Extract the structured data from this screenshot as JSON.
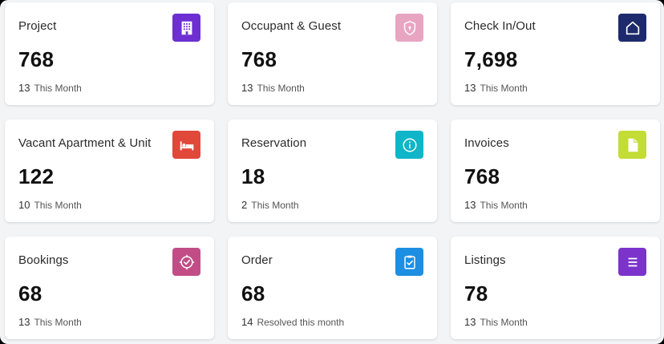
{
  "cards": [
    {
      "title": "Project",
      "value": "768",
      "count": "13",
      "period": "This Month",
      "icon": "building-icon",
      "color": "#6d2fd1"
    },
    {
      "title": "Occupant & Guest",
      "value": "768",
      "count": "13",
      "period": "This Month",
      "icon": "shield-icon",
      "color": "#e8a5c2"
    },
    {
      "title": "Check In/Out",
      "value": "7,698",
      "count": "13",
      "period": "This Month",
      "icon": "home-icon",
      "color": "#1e2a6b"
    },
    {
      "title": "Vacant Apartment & Unit",
      "value": "122",
      "count": "10",
      "period": "This Month",
      "icon": "bed-icon",
      "color": "#e0483a"
    },
    {
      "title": "Reservation",
      "value": "18",
      "count": "2",
      "period": "This Month",
      "icon": "info-icon",
      "color": "#0fb5c8"
    },
    {
      "title": "Invoices",
      "value": "768",
      "count": "13",
      "period": "This Month",
      "icon": "document-icon",
      "color": "#c3dc36"
    },
    {
      "title": "Bookings",
      "value": "68",
      "count": "13",
      "period": "This Month",
      "icon": "target-check-icon",
      "color": "#c24d86"
    },
    {
      "title": "Order",
      "value": "68",
      "count": "14",
      "period": "Resolved this month",
      "icon": "clipboard-check-icon",
      "color": "#1c8fe3"
    },
    {
      "title": "Listings",
      "value": "78",
      "count": "13",
      "period": "This Month",
      "icon": "list-icon",
      "color": "#7b33cc"
    }
  ]
}
